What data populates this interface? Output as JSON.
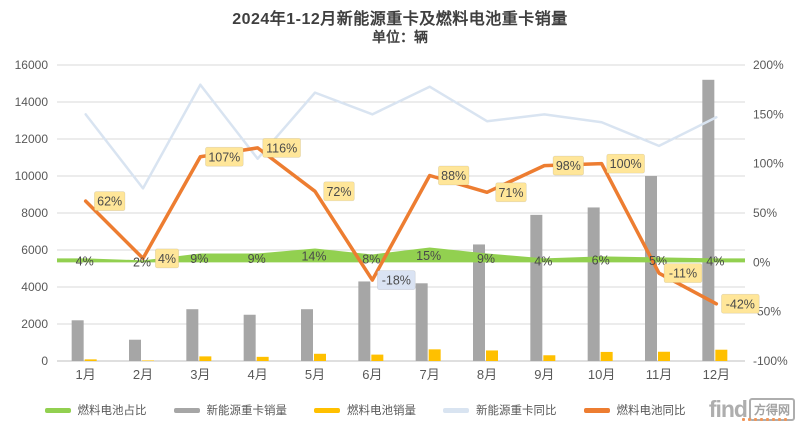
{
  "title": "2024年1-12月新能源重卡及燃料电池重卡销量",
  "subtitle": "单位：辆",
  "watermark": {
    "latin": "find",
    "cjk": "方得网"
  },
  "chart_data": {
    "type": "combo",
    "title": "2024年1-12月新能源重卡及燃料电池重卡销量",
    "subtitle_unit": "单位：辆",
    "categories": [
      "1月",
      "2月",
      "3月",
      "4月",
      "5月",
      "6月",
      "7月",
      "8月",
      "9月",
      "10月",
      "11月",
      "12月"
    ],
    "grid": true,
    "legend_position": "bottom",
    "left_axis": {
      "min": 0,
      "max": 16000,
      "tick_values": [
        0,
        2000,
        4000,
        6000,
        8000,
        10000,
        12000,
        14000,
        16000
      ],
      "tick_labels": [
        "0",
        "2000",
        "4000",
        "6000",
        "8000",
        "10000",
        "12000",
        "14000",
        "16000"
      ]
    },
    "right_axis": {
      "min": -100,
      "max": 200,
      "unit": "%",
      "tick_values": [
        -100,
        -50,
        0,
        50,
        100,
        150,
        200
      ],
      "tick_labels": [
        "-100%",
        "-50%",
        "0%",
        "50%",
        "100%",
        "150%",
        "200%"
      ]
    },
    "series": [
      {
        "name": "燃料电池占比",
        "type": "area",
        "axis": "right",
        "color": "#92D050",
        "values": [
          4,
          2,
          9,
          9,
          14,
          8,
          15,
          9,
          4,
          6,
          5,
          4
        ],
        "labels": [
          "4%",
          "2%",
          "9%",
          "9%",
          "14%",
          "8%",
          "15%",
          "9%",
          "4%",
          "6%",
          "5%",
          "4%"
        ]
      },
      {
        "name": "新能源重卡销量",
        "type": "bar",
        "axis": "left",
        "color": "#A6A6A6",
        "values": [
          2200,
          1150,
          2800,
          2500,
          2800,
          4300,
          4200,
          6300,
          7900,
          8300,
          10000,
          15200
        ]
      },
      {
        "name": "燃料电池销量",
        "type": "bar",
        "axis": "left",
        "color": "#FFC000",
        "values": [
          88,
          30,
          250,
          225,
          390,
          345,
          630,
          570,
          310,
          490,
          500,
          610
        ]
      },
      {
        "name": "新能源重卡同比",
        "type": "line",
        "axis": "right",
        "color": "#D9E4F1",
        "values": [
          150,
          75,
          180,
          105,
          172,
          150,
          178,
          143,
          150,
          142,
          118,
          147
        ]
      },
      {
        "name": "燃料电池同比",
        "type": "line",
        "axis": "right",
        "color": "#ED7D31",
        "values": [
          62,
          4,
          107,
          116,
          72,
          -18,
          88,
          71,
          98,
          100,
          -11,
          -42
        ],
        "labels": [
          {
            "text": "62%",
            "bg": "#FFE699"
          },
          {
            "text": "4%",
            "bg": "#FFE699"
          },
          {
            "text": "107%",
            "bg": "#FFE699"
          },
          {
            "text": "116%",
            "bg": "#FFE699"
          },
          {
            "text": "72%",
            "bg": "#FFE699"
          },
          {
            "text": "-18%",
            "bg": "#DAE3F3"
          },
          {
            "text": "88%",
            "bg": "#FFE699"
          },
          {
            "text": "71%",
            "bg": "#FFE699"
          },
          {
            "text": "98%",
            "bg": "#FFE699"
          },
          {
            "text": "100%",
            "bg": "#FFE699"
          },
          {
            "text": "-11%",
            "bg": "#FFE699"
          },
          {
            "text": "-42%",
            "bg": "#FFE699"
          }
        ]
      }
    ],
    "colors": {
      "gridline": "#D9D9D9",
      "axis_line": "#BFBFBF",
      "axis_text": "#595959",
      "data_label_text": "#4a4a4a"
    }
  }
}
